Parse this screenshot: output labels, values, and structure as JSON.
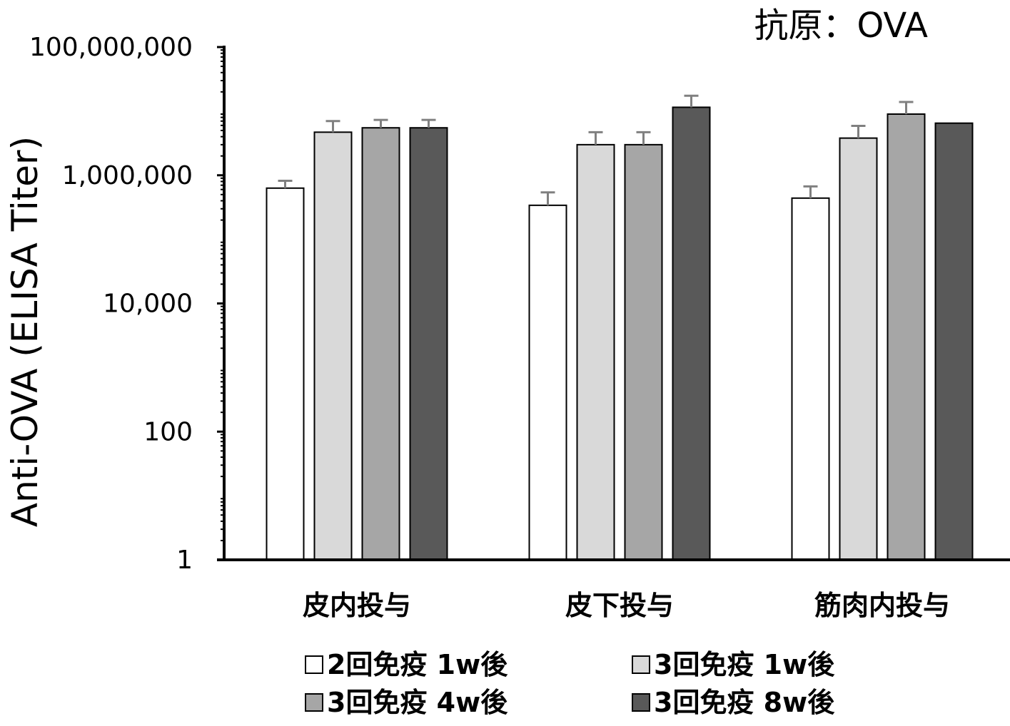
{
  "chart_data": {
    "type": "bar",
    "title": "抗原：OVA",
    "ylabel": "Anti-OVA (ELISA Titer)",
    "xlabel": "",
    "yscale": "log",
    "ylim": [
      1,
      100000000
    ],
    "yticks": [
      1,
      100,
      10000,
      1000000,
      100000000
    ],
    "ytick_labels": [
      "1",
      "100",
      "10,000",
      "1,000,000",
      "100,000,000"
    ],
    "categories": [
      "皮内投与",
      "皮下投与",
      "筋肉内投与"
    ],
    "series": [
      {
        "name": "2回免疫 1w後",
        "color": "#ffffff",
        "values": [
          630000,
          340000,
          440000
        ],
        "errors": [
          820000,
          540000,
          670000
        ]
      },
      {
        "name": "3回免疫 1w後",
        "color": "#d9d9d9",
        "values": [
          4700000,
          3000000,
          3800000
        ],
        "errors": [
          7000000,
          4700000,
          5900000
        ]
      },
      {
        "name": "3回免疫 4w後",
        "color": "#a6a6a6",
        "values": [
          5500000,
          3000000,
          9000000
        ],
        "errors": [
          7300000,
          4700000,
          13900000
        ]
      },
      {
        "name": "3回免疫 8w後",
        "color": "#595959",
        "values": [
          5500000,
          11500000,
          6500000
        ],
        "errors": [
          7300000,
          17400000,
          6500000
        ]
      }
    ],
    "legend": {
      "position": "bottom",
      "columns": 2
    },
    "grid": false
  }
}
